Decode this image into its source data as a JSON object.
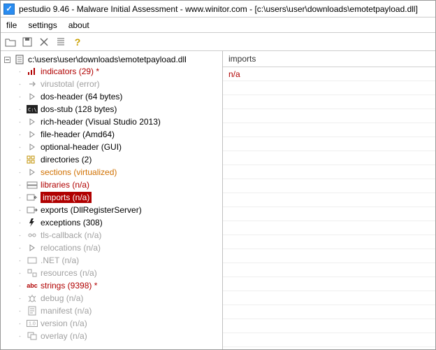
{
  "titlebar": {
    "text": "pestudio 9.46 - Malware Initial Assessment - www.winitor.com - [c:\\users\\user\\downloads\\emotetpayload.dll]"
  },
  "menubar": {
    "file": "file",
    "settings": "settings",
    "about": "about"
  },
  "tree": {
    "root": "c:\\users\\user\\downloads\\emotetpayload.dll",
    "items": [
      {
        "label": "indicators (29)",
        "cls": "lbl-red lbl-red-star",
        "icon": "bars"
      },
      {
        "label": "virustotal (error)",
        "cls": "lbl-gray",
        "icon": "arrow"
      },
      {
        "label": "dos-header (64 bytes)",
        "cls": "lbl-black",
        "icon": "caret"
      },
      {
        "label": "dos-stub (128 bytes)",
        "cls": "lbl-black",
        "icon": "console"
      },
      {
        "label": "rich-header (Visual Studio 2013)",
        "cls": "lbl-black",
        "icon": "caret"
      },
      {
        "label": "file-header (Amd64)",
        "cls": "lbl-black",
        "icon": "caret"
      },
      {
        "label": "optional-header (GUI)",
        "cls": "lbl-black",
        "icon": "caret"
      },
      {
        "label": "directories (2)",
        "cls": "lbl-black",
        "icon": "dirs"
      },
      {
        "label": "sections (virtualized)",
        "cls": "lbl-orange",
        "icon": "caret"
      },
      {
        "label": "libraries (n/a)",
        "cls": "lbl-red",
        "icon": "lib"
      },
      {
        "label": "imports (n/a)",
        "cls": "lbl-red",
        "icon": "imp",
        "selected": true
      },
      {
        "label": "exports (DllRegisterServer)",
        "cls": "lbl-black",
        "icon": "exp"
      },
      {
        "label": "exceptions (308)",
        "cls": "lbl-black",
        "icon": "exc"
      },
      {
        "label": "tls-callback (n/a)",
        "cls": "lbl-gray",
        "icon": "tls"
      },
      {
        "label": "relocations (n/a)",
        "cls": "lbl-gray",
        "icon": "caret"
      },
      {
        "label": ".NET (n/a)",
        "cls": "lbl-gray",
        "icon": "net"
      },
      {
        "label": "resources (n/a)",
        "cls": "lbl-gray",
        "icon": "res"
      },
      {
        "label": "strings (9398)",
        "cls": "lbl-red lbl-red-star",
        "icon": "abc"
      },
      {
        "label": "debug (n/a)",
        "cls": "lbl-gray",
        "icon": "bug"
      },
      {
        "label": "manifest (n/a)",
        "cls": "lbl-gray",
        "icon": "man"
      },
      {
        "label": "version (n/a)",
        "cls": "lbl-gray",
        "icon": "ver"
      },
      {
        "label": "overlay (n/a)",
        "cls": "lbl-gray",
        "icon": "ovl"
      }
    ]
  },
  "detail": {
    "header": "imports",
    "value": "n/a"
  }
}
